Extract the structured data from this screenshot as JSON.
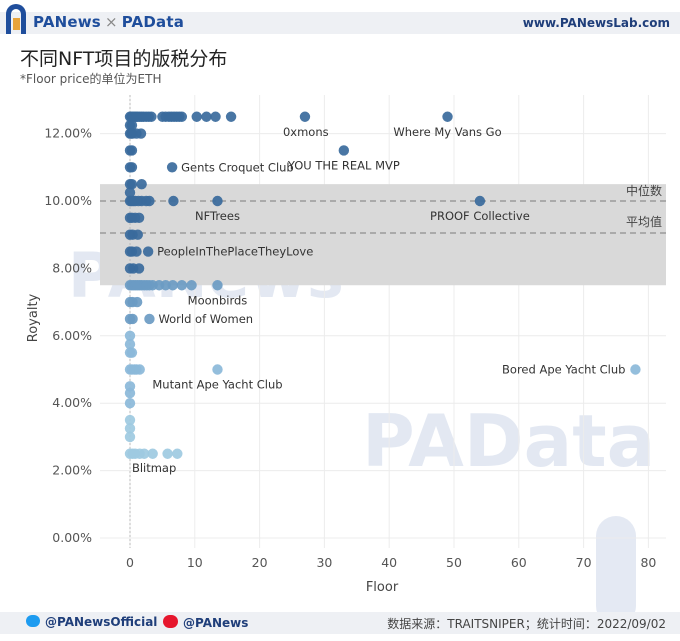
{
  "header": {
    "brand_left": "PANews",
    "brand_sep": "×",
    "brand_right": "PAData",
    "url": "www.PANewsLab.com"
  },
  "title": "不同NFT项目的版税分布",
  "subtitle": "*Floor price的单位为ETH",
  "footer": {
    "twitter": "@PANewsOfficial",
    "weibo": "@PANews",
    "source": "数据来源：TRAITSNIPER；统计时间：2022/09/02"
  },
  "colors": {
    "low": "#9ecae1",
    "mid": "#6b9bc3",
    "high": "#3a6a9c",
    "band": "#d9d9d9",
    "ref_line": "#9a9a9a"
  },
  "chart_data": {
    "type": "scatter",
    "xlabel": "Floor",
    "ylabel": "Royalty",
    "xlim": [
      -5,
      82
    ],
    "ylim": [
      0,
      13
    ],
    "xticks": [
      0,
      10,
      20,
      30,
      40,
      50,
      60,
      70,
      80
    ],
    "yticks": [
      0,
      2,
      4,
      6,
      8,
      10,
      12
    ],
    "ytick_labels": [
      "0.00%",
      "2.00%",
      "4.00%",
      "6.00%",
      "8.00%",
      "10.00%",
      "12.00%"
    ],
    "band": {
      "from": 7.5,
      "to": 10.5
    },
    "reference_lines": [
      {
        "label": "中位数",
        "y": 10.0
      },
      {
        "label": "平均值",
        "y": 9.05
      }
    ],
    "labeled_points": [
      {
        "name": "0xmons",
        "x": 27,
        "y": 12.5
      },
      {
        "name": "Where My Vans Go",
        "x": 49,
        "y": 12.5
      },
      {
        "name": "YOU THE REAL MVP",
        "x": 33,
        "y": 11.5
      },
      {
        "name": "Gents Croquet Club",
        "x": 6.5,
        "y": 11.0
      },
      {
        "name": "NFTrees",
        "x": 13.5,
        "y": 10.0
      },
      {
        "name": "PROOF Collective",
        "x": 54,
        "y": 10.0
      },
      {
        "name": "PeopleInThePlaceTheyLove",
        "x": 2.8,
        "y": 8.5
      },
      {
        "name": "Moonbirds",
        "x": 13.5,
        "y": 7.5
      },
      {
        "name": "World of Women",
        "x": 3,
        "y": 6.5
      },
      {
        "name": "Mutant Ape Yacht Club",
        "x": 13.5,
        "y": 5.0
      },
      {
        "name": "Bored Ape Yacht Club",
        "x": 78,
        "y": 5.0
      },
      {
        "name": "Blitmap",
        "x": 0.3,
        "y": 2.5
      }
    ],
    "points": [
      [
        0.0,
        12.5
      ],
      [
        0.2,
        12.5
      ],
      [
        0.4,
        12.5
      ],
      [
        0.6,
        12.5
      ],
      [
        0.8,
        12.5
      ],
      [
        1.0,
        12.5
      ],
      [
        1.2,
        12.5
      ],
      [
        1.5,
        12.5
      ],
      [
        1.8,
        12.5
      ],
      [
        2.1,
        12.5
      ],
      [
        2.5,
        12.5
      ],
      [
        2.9,
        12.5
      ],
      [
        3.3,
        12.5
      ],
      [
        5.0,
        12.5
      ],
      [
        5.5,
        12.5
      ],
      [
        6.0,
        12.5
      ],
      [
        6.4,
        12.5
      ],
      [
        6.8,
        12.5
      ],
      [
        7.2,
        12.5
      ],
      [
        7.6,
        12.5
      ],
      [
        8.0,
        12.5
      ],
      [
        10.3,
        12.5
      ],
      [
        11.8,
        12.5
      ],
      [
        13.2,
        12.5
      ],
      [
        15.6,
        12.5
      ],
      [
        27,
        12.5
      ],
      [
        49,
        12.5
      ],
      [
        0.0,
        12.25
      ],
      [
        0.3,
        12.25
      ],
      [
        0.0,
        12.0
      ],
      [
        0.2,
        12.0
      ],
      [
        0.4,
        12.0
      ],
      [
        1.0,
        12.0
      ],
      [
        1.7,
        12.0
      ],
      [
        0.0,
        11.5
      ],
      [
        0.3,
        11.5
      ],
      [
        33,
        11.5
      ],
      [
        0.0,
        11.0
      ],
      [
        0.3,
        11.0
      ],
      [
        6.5,
        11.0
      ],
      [
        0.0,
        10.5
      ],
      [
        0.3,
        10.5
      ],
      [
        1.8,
        10.5
      ],
      [
        0.0,
        10.25
      ],
      [
        0.0,
        10.0
      ],
      [
        0.2,
        10.0
      ],
      [
        0.5,
        10.0
      ],
      [
        0.8,
        10.0
      ],
      [
        1.3,
        10.0
      ],
      [
        1.8,
        10.0
      ],
      [
        2.5,
        10.0
      ],
      [
        3.0,
        10.0
      ],
      [
        6.7,
        10.0
      ],
      [
        13.5,
        10.0
      ],
      [
        54,
        10.0
      ],
      [
        0.0,
        9.5
      ],
      [
        0.3,
        9.5
      ],
      [
        0.8,
        9.5
      ],
      [
        1.4,
        9.5
      ],
      [
        0.0,
        9.0
      ],
      [
        0.4,
        9.0
      ],
      [
        1.2,
        9.0
      ],
      [
        0.0,
        8.5
      ],
      [
        0.3,
        8.5
      ],
      [
        1.0,
        8.5
      ],
      [
        2.8,
        8.5
      ],
      [
        0.0,
        8.0
      ],
      [
        0.5,
        8.0
      ],
      [
        1.4,
        8.0
      ],
      [
        0.0,
        7.5
      ],
      [
        0.3,
        7.5
      ],
      [
        0.6,
        7.5
      ],
      [
        0.9,
        7.5
      ],
      [
        1.2,
        7.5
      ],
      [
        1.5,
        7.5
      ],
      [
        1.8,
        7.5
      ],
      [
        2.2,
        7.5
      ],
      [
        2.6,
        7.5
      ],
      [
        3.0,
        7.5
      ],
      [
        3.5,
        7.5
      ],
      [
        4.5,
        7.5
      ],
      [
        5.5,
        7.5
      ],
      [
        6.6,
        7.5
      ],
      [
        8.0,
        7.5
      ],
      [
        9.5,
        7.5
      ],
      [
        13.5,
        7.5
      ],
      [
        0.0,
        7.0
      ],
      [
        0.4,
        7.0
      ],
      [
        1.1,
        7.0
      ],
      [
        0.0,
        6.5
      ],
      [
        0.4,
        6.5
      ],
      [
        3.0,
        6.5
      ],
      [
        0.0,
        6.0
      ],
      [
        0.0,
        5.75
      ],
      [
        0.0,
        5.5
      ],
      [
        0.3,
        5.5
      ],
      [
        0.0,
        5.0
      ],
      [
        0.3,
        5.0
      ],
      [
        0.7,
        5.0
      ],
      [
        1.0,
        5.0
      ],
      [
        1.5,
        5.0
      ],
      [
        13.5,
        5.0
      ],
      [
        78,
        5.0
      ],
      [
        0.0,
        4.5
      ],
      [
        0.0,
        4.3
      ],
      [
        0.0,
        4.0
      ],
      [
        0.0,
        3.5
      ],
      [
        0.0,
        3.25
      ],
      [
        0.0,
        3.0
      ],
      [
        0.0,
        2.5
      ],
      [
        0.4,
        2.5
      ],
      [
        0.8,
        2.5
      ],
      [
        1.5,
        2.5
      ],
      [
        2.2,
        2.5
      ],
      [
        3.5,
        2.5
      ],
      [
        5.8,
        2.5
      ],
      [
        7.3,
        2.5
      ]
    ]
  }
}
